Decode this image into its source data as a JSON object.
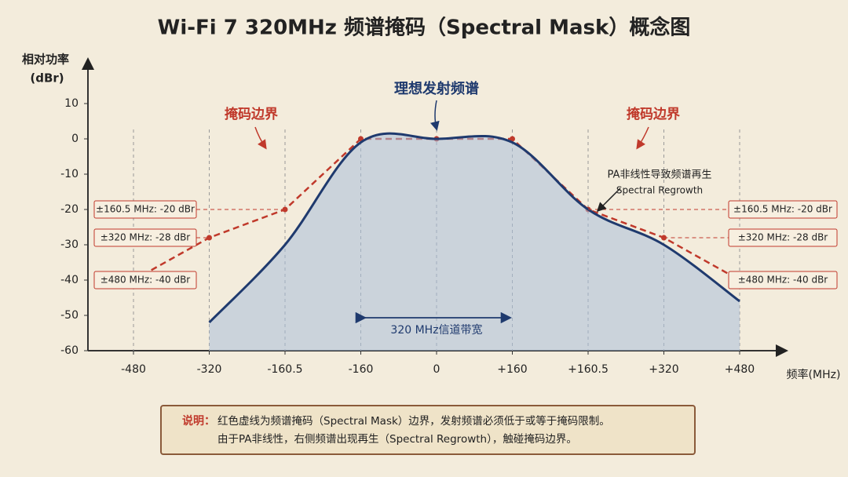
{
  "chart_data": {
    "type": "line",
    "title": "Wi-Fi 7 320MHz 频谱掩码（Spectral Mask）概念图",
    "ylabel": [
      "相对功率",
      "(dBr)"
    ],
    "xlabel": "频率(MHz)",
    "categories": [
      "-480",
      "-320",
      "-160.5",
      "-160",
      "0",
      "+160",
      "+160.5",
      "+320",
      "+480"
    ],
    "ylim": [
      -60,
      20
    ],
    "yticks": [
      10,
      0,
      -10,
      -20,
      -30,
      -40,
      -50,
      -60
    ],
    "series": [
      {
        "name": "掩码边界",
        "color": "#c0392b",
        "values": [
          -40,
          -28,
          -20,
          0,
          0,
          0,
          -20,
          -28,
          -40
        ]
      },
      {
        "name": "理想发射频谱",
        "color": "#1f3a6e",
        "values": [
          null,
          -52,
          -30,
          -1,
          0,
          -1,
          -20,
          -30,
          -46
        ]
      }
    ],
    "mask_labels": [
      "±160.5 MHz: -20 dBr",
      "±320 MHz: -28 dBr",
      "±480 MHz: -40 dBr"
    ],
    "annotations": {
      "regrowth": "PA非线性导致频谱再生",
      "regrowth_en": "Spectral Regrowth",
      "bandwidth": "320 MHz信道带宽"
    },
    "note": {
      "label": "说明：",
      "lines": [
        "红色虚线为频谱掩码（Spectral Mask）边界，发射频谱必须低于或等于掩码限制。",
        "由于PA非线性，右侧频谱出现再生（Spectral Regrowth），触碰掩码边界。"
      ]
    }
  }
}
